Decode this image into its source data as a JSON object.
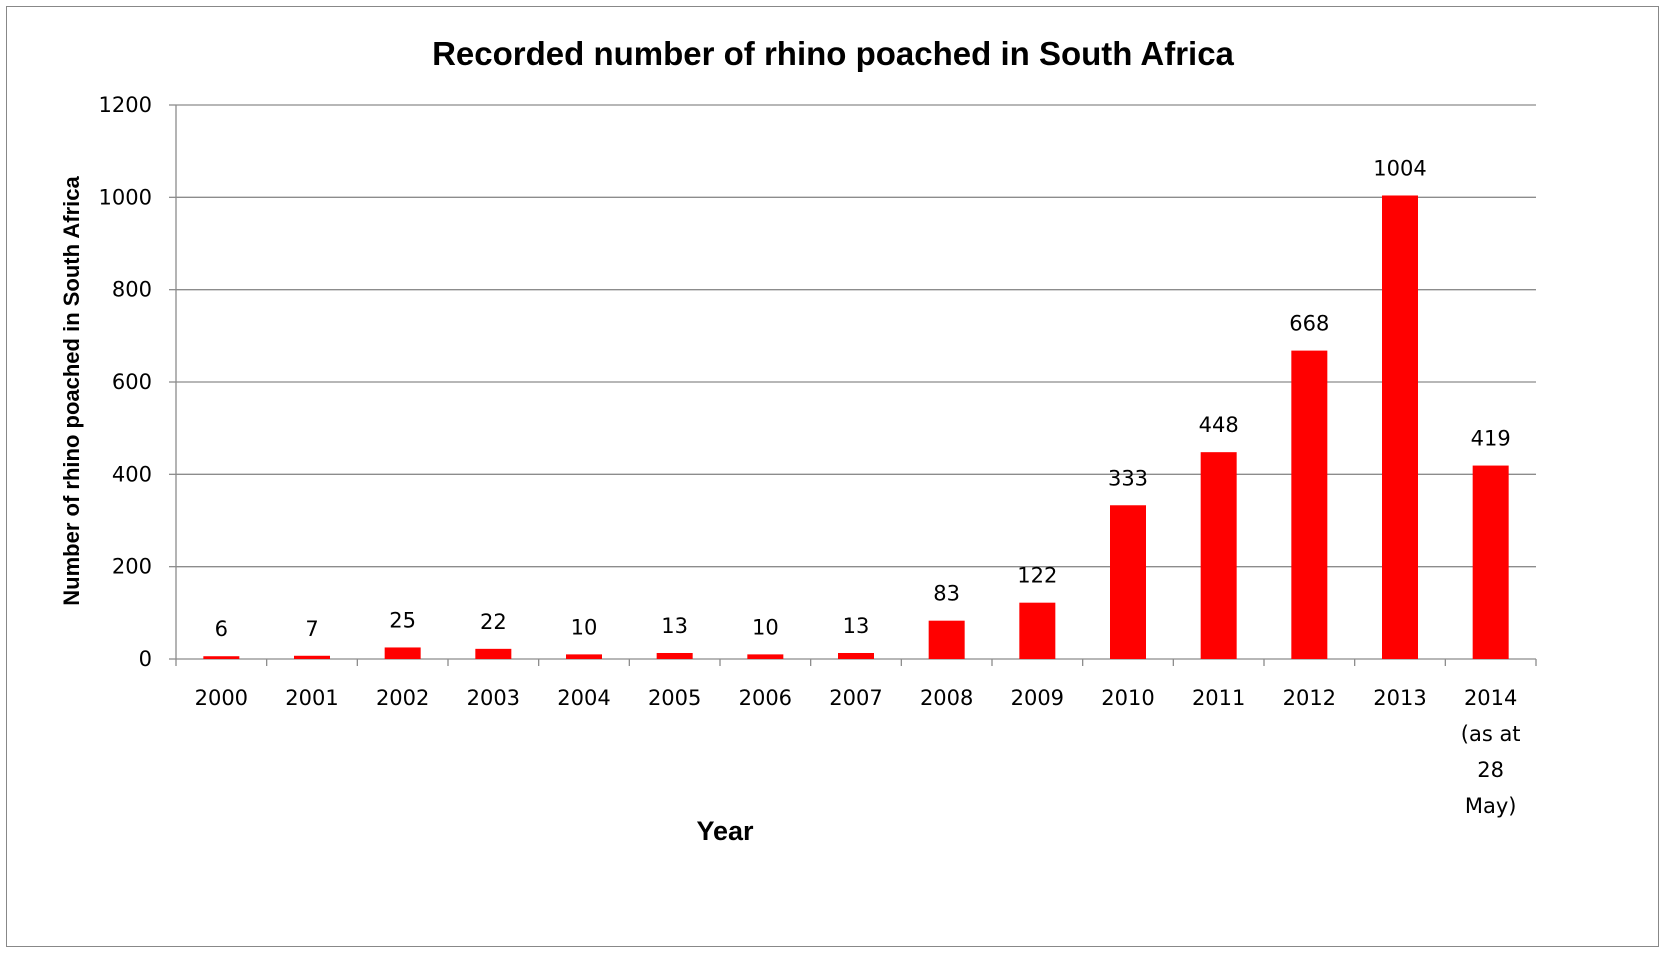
{
  "chart_data": {
    "type": "bar",
    "title": "Recorded number of rhino poached in South Africa",
    "xlabel": "Year",
    "ylabel": "Number of rhino  poached  in South Africa",
    "categories": [
      [
        "2000"
      ],
      [
        "2001"
      ],
      [
        "2002"
      ],
      [
        "2003"
      ],
      [
        "2004"
      ],
      [
        "2005"
      ],
      [
        "2006"
      ],
      [
        "2007"
      ],
      [
        "2008"
      ],
      [
        "2009"
      ],
      [
        "2010"
      ],
      [
        "2011"
      ],
      [
        "2012"
      ],
      [
        "2013"
      ],
      [
        "2014",
        "(as at",
        "28",
        "May)"
      ]
    ],
    "values": [
      6,
      7,
      25,
      22,
      10,
      13,
      10,
      13,
      83,
      122,
      333,
      448,
      668,
      1004,
      419
    ],
    "ylim": [
      0,
      1200
    ],
    "yticks": [
      0,
      200,
      400,
      600,
      800,
      1000,
      1200
    ],
    "grid": true,
    "legend": "none",
    "bar_color": "#ff0000",
    "grid_color": "#8c8c8c"
  }
}
